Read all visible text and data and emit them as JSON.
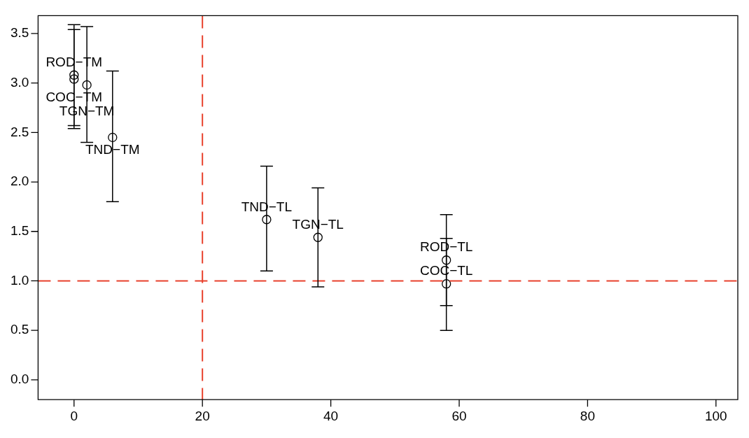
{
  "chart_data": {
    "type": "scatter",
    "x": [
      0,
      0,
      2,
      6,
      30,
      38,
      58,
      58
    ],
    "series": [
      {
        "color": "#000000",
        "values": [
          3.08,
          3.04,
          2.98,
          2.45,
          1.62,
          1.44,
          1.21,
          0.97
        ],
        "errors": [
          [
            2.57,
            3.59
          ],
          [
            2.54,
            3.54
          ],
          [
            2.4,
            3.57
          ],
          [
            1.8,
            3.12
          ],
          [
            1.1,
            2.16
          ],
          [
            0.94,
            1.94
          ],
          [
            0.75,
            1.67
          ],
          [
            0.5,
            1.43
          ]
        ]
      }
    ],
    "marker": "circle",
    "grid": false,
    "legend": false,
    "xlim": [
      -5.6,
      103.4
    ],
    "xticks": [
      0,
      20,
      40,
      60,
      80,
      100
    ],
    "ylim": [
      -0.2,
      3.68
    ],
    "yticks": [
      {
        "value": 0,
        "label": "0.0"
      },
      0.5,
      {
        "value": 1,
        "label": "1.0"
      },
      1.5,
      {
        "value": 2,
        "label": "2.0"
      },
      2.5,
      {
        "value": 3,
        "label": "3.0"
      },
      3.5
    ],
    "ref_lines": [
      {
        "axis": "x",
        "value": 20,
        "color": "#e8412c",
        "line_style": "dashed"
      },
      {
        "axis": "y",
        "value": 1,
        "color": "#e8412c",
        "line_style": "dashed"
      }
    ],
    "annotations": [
      {
        "text": "ROD−TM",
        "x": 0,
        "y": 3.08
      },
      {
        "text": "COC−TM",
        "x": 0,
        "y": 3.04
      },
      {
        "text": "TGN−TM",
        "x": 2,
        "y": 2.98
      },
      {
        "text": "TND−TM",
        "x": 6,
        "y": 2.45
      },
      {
        "text": "TND−TL",
        "x": 30,
        "y": 1.62
      },
      {
        "text": "TGN−TL",
        "x": 38,
        "y": 1.44
      },
      {
        "text": "ROD−TL",
        "x": 58,
        "y": 1.21
      },
      {
        "text": "COC−TL",
        "x": 58,
        "y": 0.97
      }
    ]
  }
}
